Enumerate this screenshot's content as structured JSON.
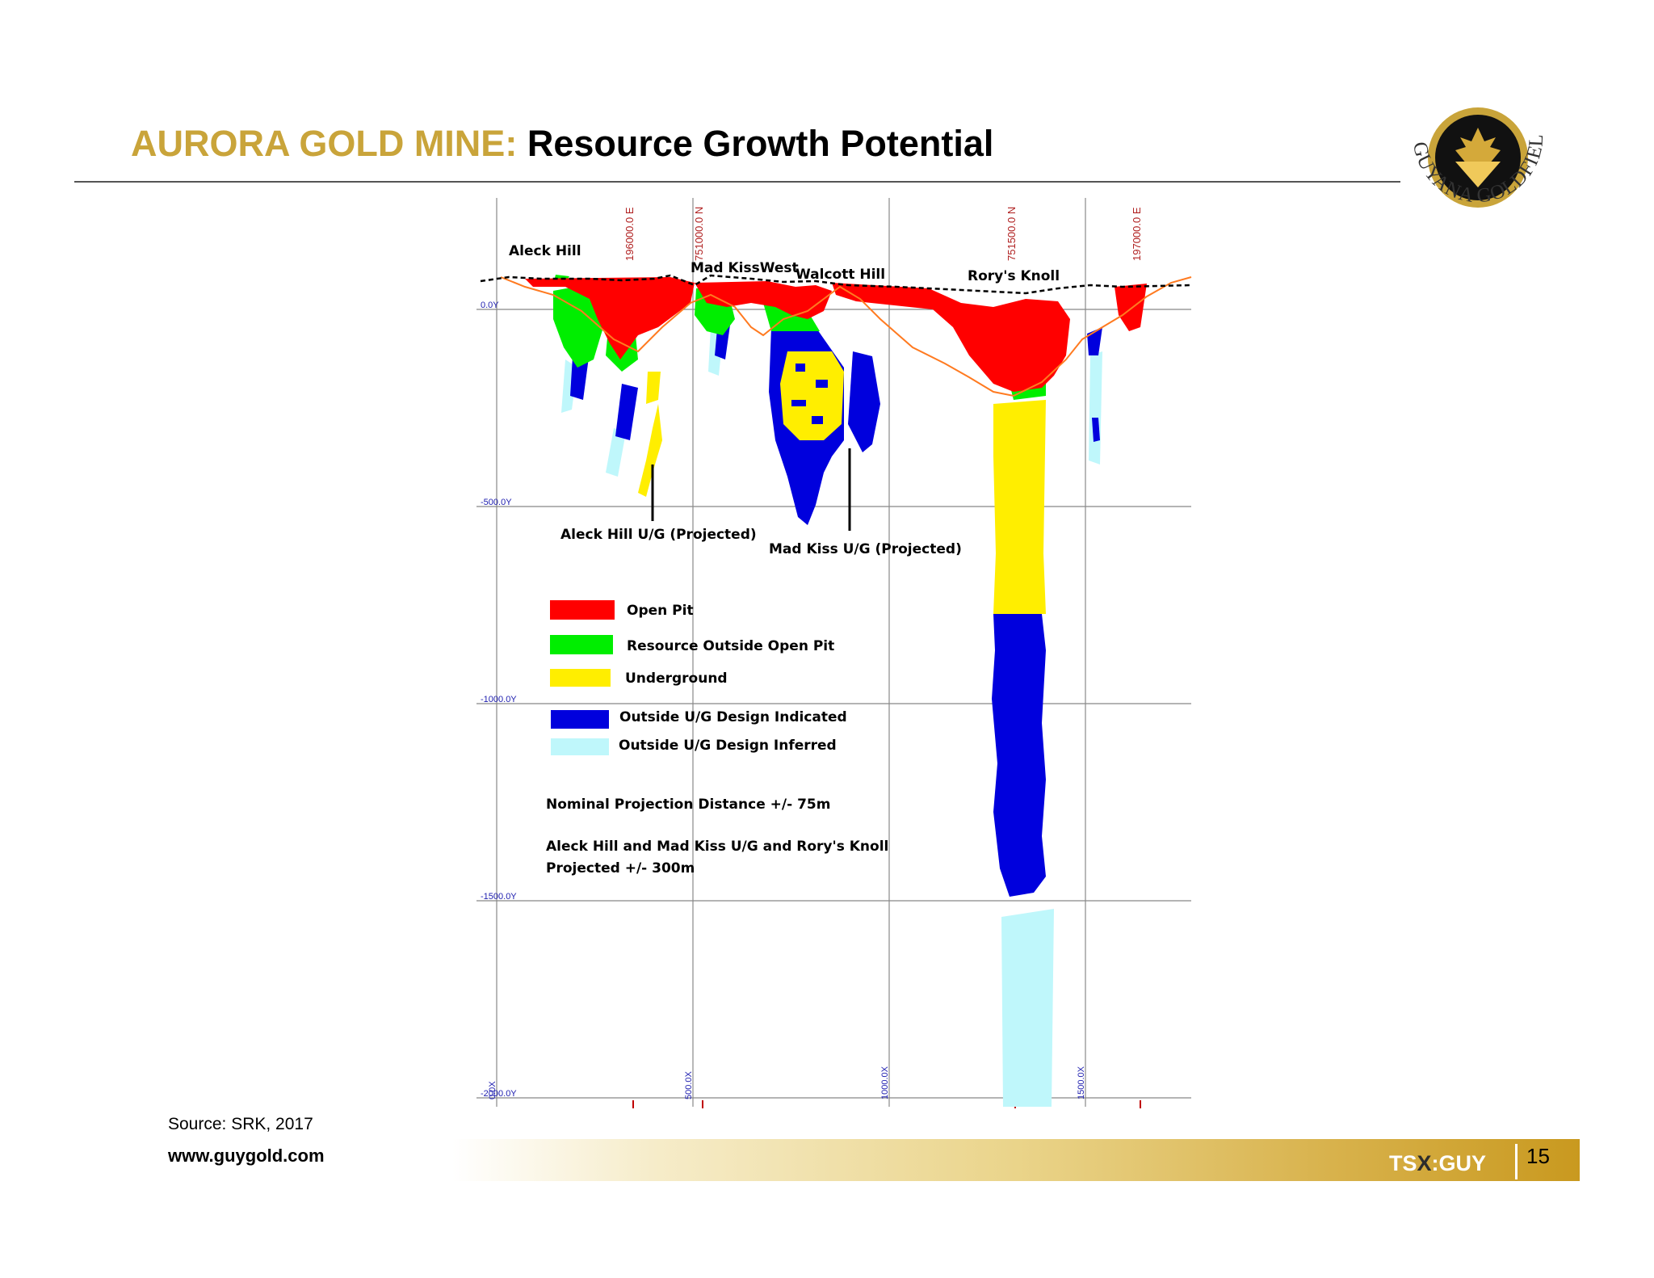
{
  "slide": {
    "title_accent": "AURORA GOLD MINE:",
    "title_main": "Resource Growth Potential",
    "source": "Source: SRK, 2017",
    "website": "www.guygold.com",
    "ticker_a": "TS",
    "ticker_x": "X",
    "ticker_b": ":GUY",
    "page_number": "15"
  },
  "logo": {
    "text": "GUYANA GOLDFIELDS INC.",
    "ring_color": "#c9a43a"
  },
  "section": {
    "northings": [
      "196000.0 E",
      "751000.0 N",
      "751500.0 N",
      "197000.0 E"
    ],
    "levels": [
      "0.0Y",
      "-500.0Y",
      "-1000.0Y",
      "-1500.0Y",
      "-2000.0Y"
    ],
    "eastings": [
      "0.0X",
      "500.0X",
      "1000.0X",
      "1500.0X"
    ],
    "deposits": [
      "Aleck Hill",
      "Mad KissWest",
      "Walcott Hill",
      "Rory's Knoll"
    ],
    "callouts": [
      "Aleck Hill U/G (Projected)",
      "Mad Kiss U/G (Projected)"
    ],
    "legend": [
      {
        "label": "Open Pit",
        "color": "#ff0000"
      },
      {
        "label": "Resource Outside Open Pit",
        "color": "#00ee00"
      },
      {
        "label": "Underground",
        "color": "#ffee00"
      },
      {
        "label": "Outside U/G Design Indicated",
        "color": "#0000dd"
      },
      {
        "label": "Outside U/G Design Inferred",
        "color": "#bff7fb"
      }
    ],
    "note_1": "Nominal Projection Distance +/- 75m",
    "note_2a": "Aleck Hill and Mad Kiss U/G and Rory's Knoll",
    "note_2b": "Projected +/- 300m"
  }
}
